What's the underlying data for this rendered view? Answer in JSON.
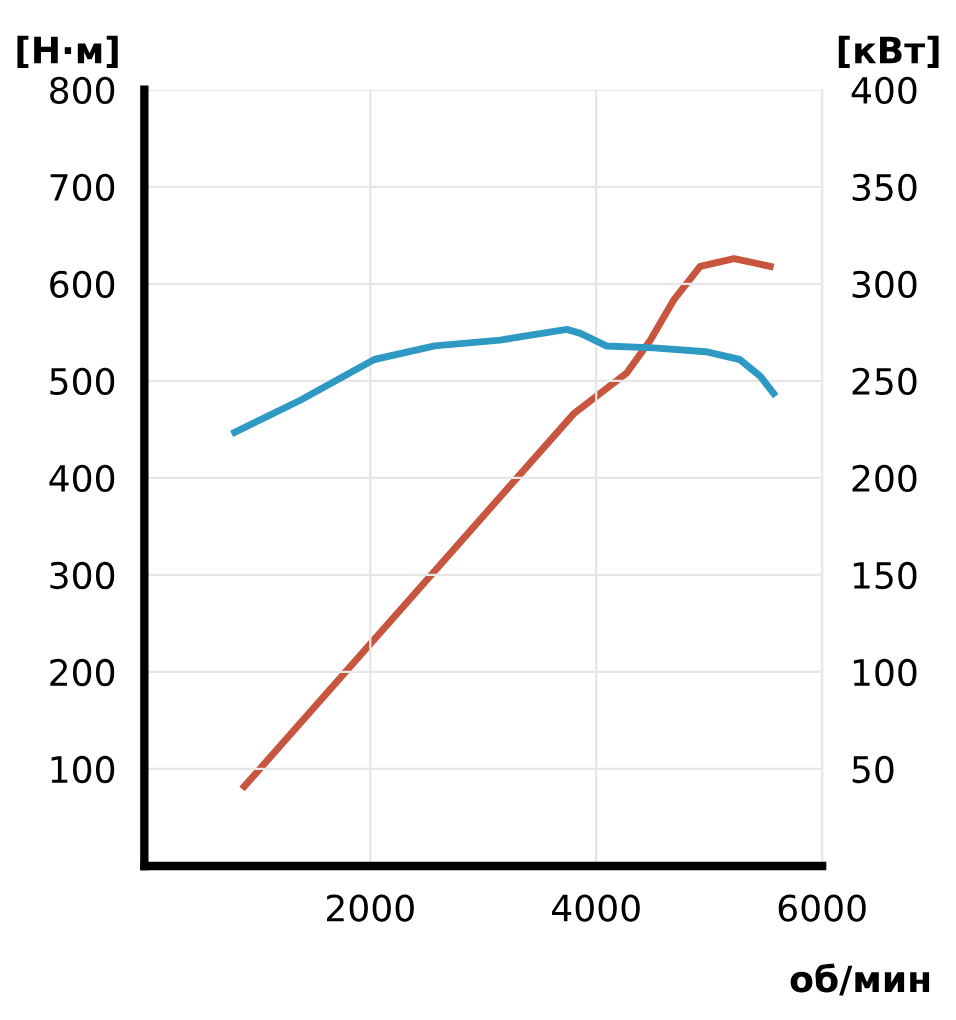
{
  "chart_data": {
    "type": "line",
    "ylabel": "[Н·м]",
    "y2label": "[кВт]",
    "xlabel": "об/мин",
    "xlim": [
      0,
      6000
    ],
    "xticks": [
      2000,
      4000,
      6000
    ],
    "ylim": [
      0,
      800
    ],
    "yticks": [
      100,
      200,
      300,
      400,
      500,
      600,
      700,
      800
    ],
    "y2lim": [
      0,
      400
    ],
    "y2ticks": [
      50,
      100,
      150,
      200,
      250,
      300,
      350,
      400
    ],
    "grid": true,
    "series": [
      {
        "color": "#2e9ac4",
        "x": [
          800,
          1380,
          2035,
          2570,
          3150,
          3740,
          3860,
          4090,
          4510,
          4970,
          5270,
          5450,
          5570
        ],
        "values": [
          447,
          480,
          522,
          536,
          542,
          553,
          549,
          536,
          534,
          530,
          522,
          505,
          487
        ]
      },
      {
        "color": "#c8553d",
        "axis": "y2",
        "x": [
          885,
          3800,
          4270,
          4480,
          4690,
          4920,
          5220,
          5540
        ],
        "values": [
          41,
          233,
          254,
          271,
          292,
          309,
          313,
          309
        ]
      }
    ]
  }
}
